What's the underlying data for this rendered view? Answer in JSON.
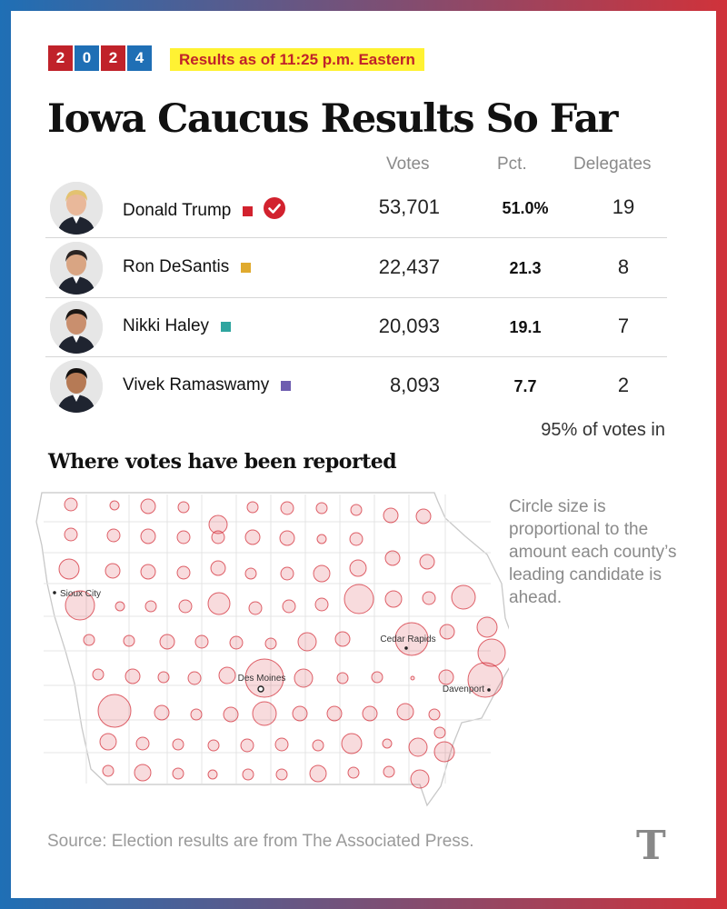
{
  "header": {
    "year_digits": [
      "2",
      "0",
      "2",
      "4"
    ],
    "year_colors": [
      "#c0222a",
      "#1f6fb5",
      "#c0222a",
      "#1f6fb5"
    ],
    "status": "Results as of 11:25 p.m. Eastern"
  },
  "title": "Iowa Caucus Results So Far",
  "columns": {
    "votes": "Votes",
    "pct": "Pct.",
    "delegates": "Delegates"
  },
  "chart_data": {
    "type": "table",
    "rows": [
      {
        "name": "Donald Trump",
        "color": "#d2222e",
        "winner": true,
        "votes": "53,701",
        "pct": "51.0%",
        "delegates": "19"
      },
      {
        "name": "Ron DeSantis",
        "color": "#e0aa2e",
        "winner": false,
        "votes": "22,437",
        "pct": "21.3",
        "delegates": "8"
      },
      {
        "name": "Nikki Haley",
        "color": "#2fa59f",
        "winner": false,
        "votes": "20,093",
        "pct": "19.1",
        "delegates": "7"
      },
      {
        "name": "Vivek Ramaswamy",
        "color": "#6e5db0",
        "winner": false,
        "votes": "8,093",
        "pct": "7.7",
        "delegates": "2"
      }
    ]
  },
  "reporting": "95% of votes in",
  "map_section": {
    "title": "Where votes have been reported",
    "note": "Circle size is proportional to the amount each county’s leading candidate is ahead.",
    "cities": [
      "Sioux City",
      "Cedar Rapids",
      "Des Moines",
      "Davenport"
    ],
    "circle_color": "#d2222e",
    "icons": [
      "check-circle-icon",
      "candidate-portrait-icon"
    ]
  },
  "source": "Source: Election results are from The Associated Press.",
  "logo": "T"
}
